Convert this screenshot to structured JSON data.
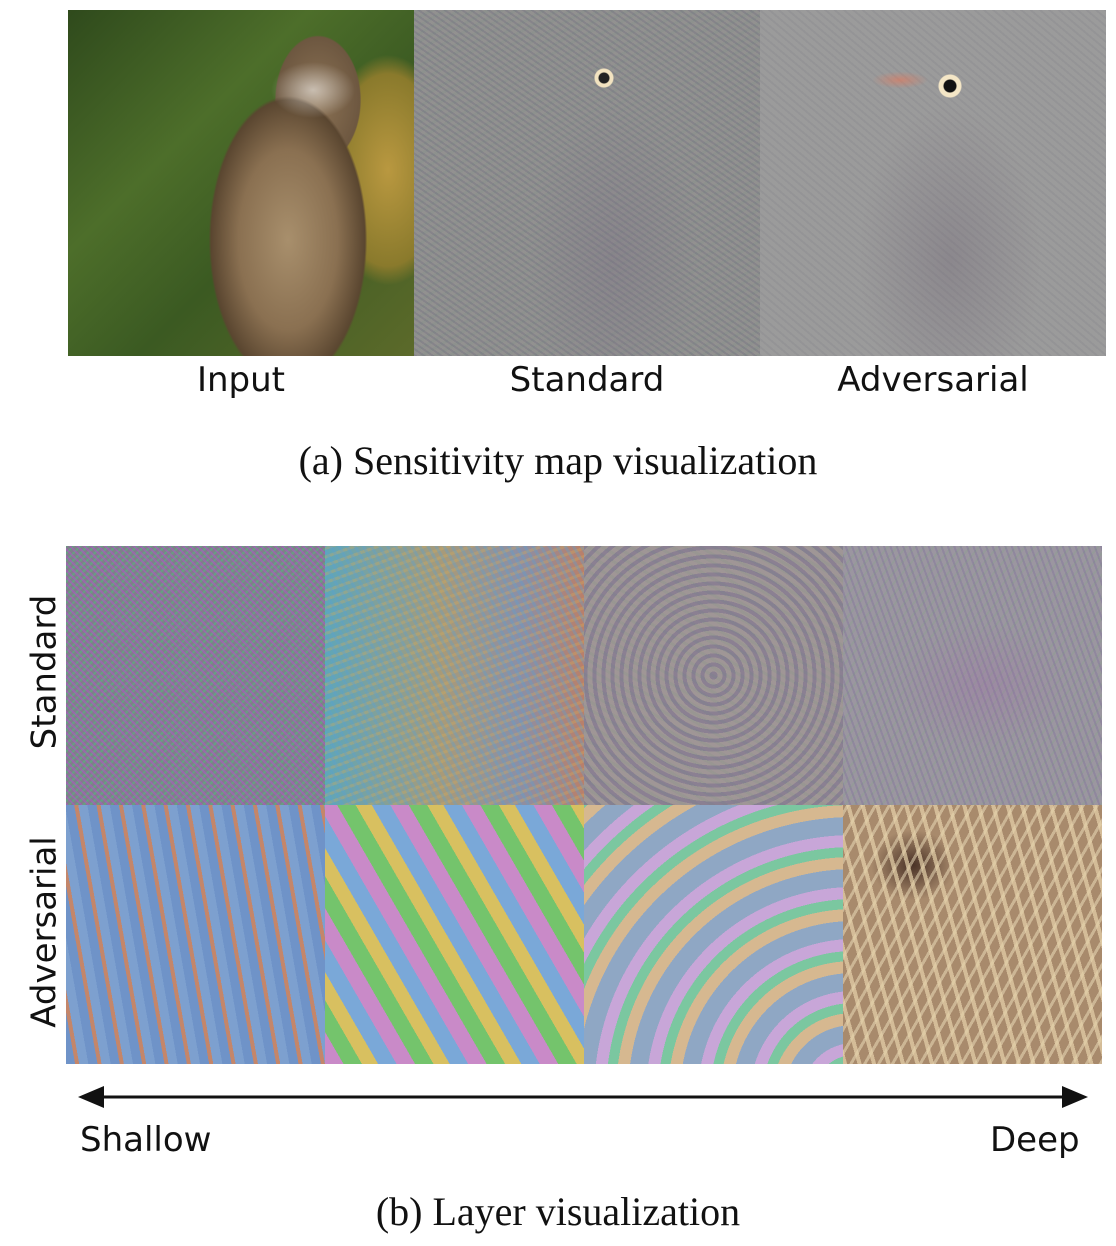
{
  "panel_a": {
    "labels": [
      "Input",
      "Standard",
      "Adversarial"
    ],
    "caption": "(a) Sensitivity map visualization"
  },
  "panel_b": {
    "row_labels": [
      "Standard",
      "Adversarial"
    ],
    "axis_left": "Shallow",
    "axis_right": "Deep",
    "caption": "(b) Layer visualization"
  }
}
